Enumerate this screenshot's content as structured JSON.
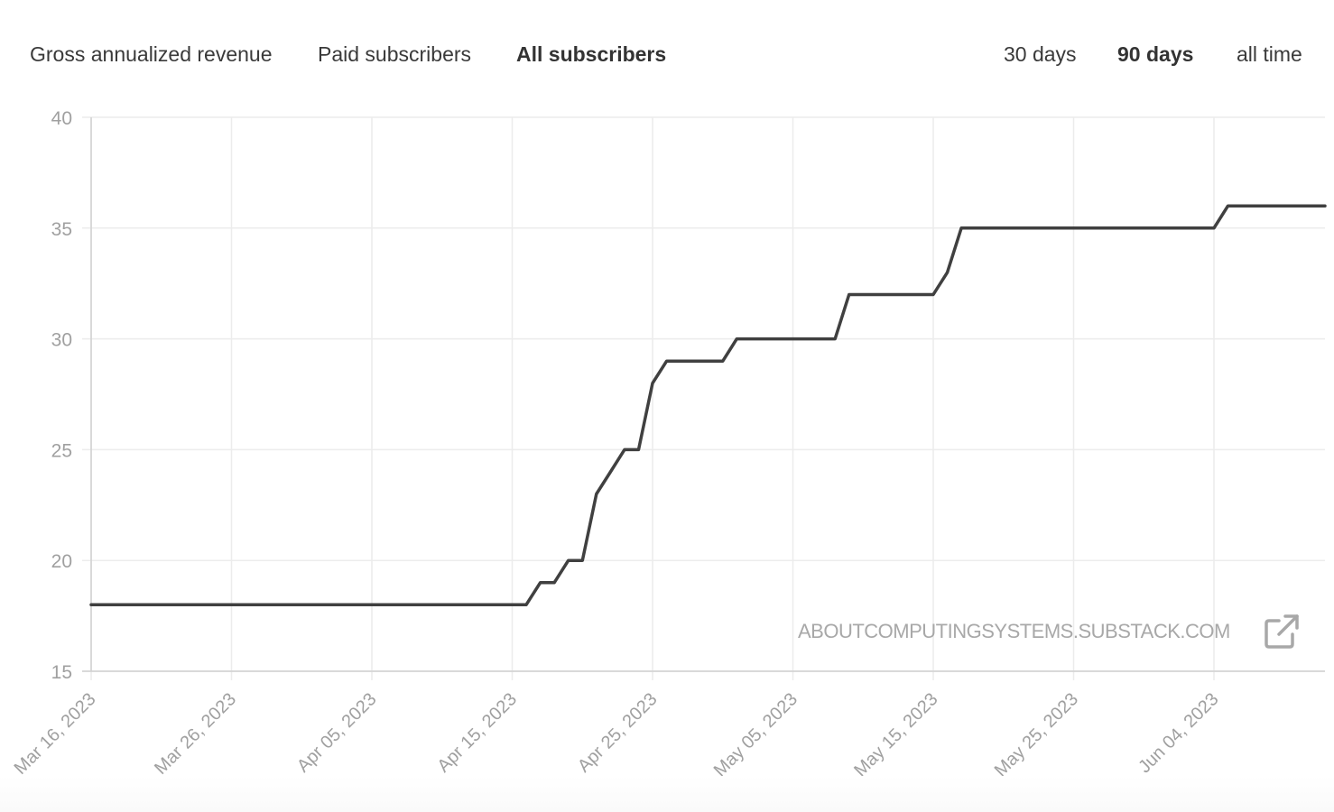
{
  "metric_tabs": [
    {
      "label": "Gross annualized revenue",
      "active": false
    },
    {
      "label": "Paid subscribers",
      "active": false
    },
    {
      "label": "All subscribers",
      "active": true
    }
  ],
  "range_tabs": [
    {
      "label": "30 days",
      "active": false
    },
    {
      "label": "90 days",
      "active": true
    },
    {
      "label": "all time",
      "active": false
    }
  ],
  "watermark": {
    "text": "ABOUTCOMPUTINGSYSTEMS.SUBSTACK.COM",
    "icon": "external-link-icon"
  },
  "colors": {
    "line": "#404040",
    "grid": "#ececec",
    "tick_text": "#a0a0a0"
  },
  "chart_data": {
    "type": "line",
    "title": "",
    "xlabel": "",
    "ylabel": "",
    "grid": true,
    "legend": "none",
    "ylim": [
      15,
      40
    ],
    "xlim": [
      "2023-03-16",
      "2023-06-12"
    ],
    "y_ticks": [
      15,
      20,
      25,
      30,
      35,
      40
    ],
    "x_tick_dates": [
      "2023-03-16",
      "2023-03-26",
      "2023-04-05",
      "2023-04-15",
      "2023-04-25",
      "2023-05-05",
      "2023-05-15",
      "2023-05-25",
      "2023-06-04"
    ],
    "x_tick_labels": [
      "Mar 16, 2023",
      "Mar 26, 2023",
      "Apr 05, 2023",
      "Apr 15, 2023",
      "Apr 25, 2023",
      "May 05, 2023",
      "May 15, 2023",
      "May 25, 2023",
      "Jun 04, 2023"
    ],
    "series": [
      {
        "values": [
          {
            "x": "2023-03-16",
            "y": 18
          },
          {
            "x": "2023-04-15",
            "y": 18
          },
          {
            "x": "2023-04-16",
            "y": 18
          },
          {
            "x": "2023-04-17",
            "y": 19
          },
          {
            "x": "2023-04-18",
            "y": 19
          },
          {
            "x": "2023-04-19",
            "y": 20
          },
          {
            "x": "2023-04-20",
            "y": 20
          },
          {
            "x": "2023-04-21",
            "y": 23
          },
          {
            "x": "2023-04-22",
            "y": 24
          },
          {
            "x": "2023-04-23",
            "y": 25
          },
          {
            "x": "2023-04-24",
            "y": 25
          },
          {
            "x": "2023-04-25",
            "y": 28
          },
          {
            "x": "2023-04-26",
            "y": 29
          },
          {
            "x": "2023-04-30",
            "y": 29
          },
          {
            "x": "2023-05-01",
            "y": 30
          },
          {
            "x": "2023-05-08",
            "y": 30
          },
          {
            "x": "2023-05-09",
            "y": 32
          },
          {
            "x": "2023-05-15",
            "y": 32
          },
          {
            "x": "2023-05-16",
            "y": 33
          },
          {
            "x": "2023-05-17",
            "y": 35
          },
          {
            "x": "2023-06-04",
            "y": 35
          },
          {
            "x": "2023-06-05",
            "y": 36
          },
          {
            "x": "2023-06-12",
            "y": 36
          }
        ]
      }
    ]
  }
}
